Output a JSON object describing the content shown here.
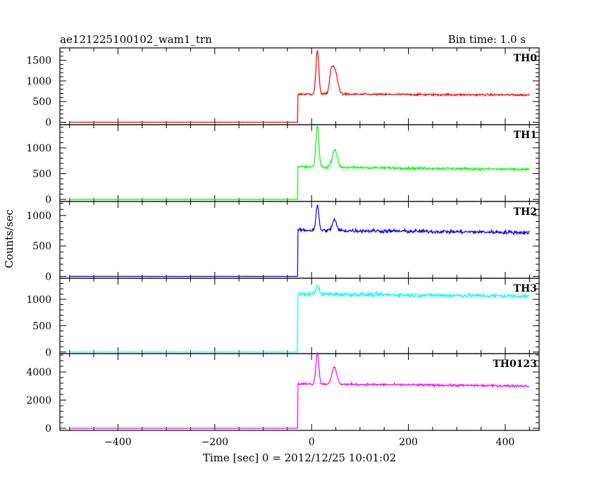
{
  "chart_data": {
    "type": "line",
    "title_left": "ae121225100102_wam1_trn",
    "title_right": "Bin time: 1.0 s",
    "xlabel": "Time [sec] 0 = 2012/12/25 10:01:02",
    "ylabel": "Counts/sec",
    "xlim": [
      -520,
      470
    ],
    "x_ticks": [
      -400,
      -200,
      0,
      200,
      400
    ],
    "grid": false,
    "panels": [
      {
        "name": "TH0",
        "color": "#ff0000",
        "ylim": [
          -60,
          1800
        ],
        "y_ticks": [
          0,
          500,
          1000,
          1500
        ],
        "y_tick_labels": [
          "0",
          "500",
          "1000",
          "1500"
        ],
        "pre_level": 0,
        "post_level": 680,
        "noise": 25,
        "features": [
          {
            "x": 12,
            "height": 1050,
            "width": 3
          },
          {
            "x": 47,
            "height": 620,
            "width": 6
          },
          {
            "x": 40,
            "height": 300,
            "width": 3
          }
        ],
        "end_level": 660
      },
      {
        "name": "TH1",
        "color": "#00ff00",
        "ylim": [
          -40,
          1450
        ],
        "y_ticks": [
          0,
          500,
          1000
        ],
        "y_tick_labels": [
          "0",
          "500",
          "1000"
        ],
        "pre_level": 0,
        "post_level": 630,
        "noise": 25,
        "features": [
          {
            "x": 12,
            "height": 800,
            "width": 3
          },
          {
            "x": 48,
            "height": 350,
            "width": 5
          }
        ],
        "end_level": 580
      },
      {
        "name": "TH2",
        "color": "#0000ff",
        "ylim": [
          -30,
          1230
        ],
        "y_ticks": [
          0,
          500,
          1000
        ],
        "y_tick_labels": [
          "0",
          "500",
          "1000"
        ],
        "pre_level": 0,
        "post_level": 760,
        "noise": 30,
        "features": [
          {
            "x": 12,
            "height": 400,
            "width": 3
          },
          {
            "x": 47,
            "height": 180,
            "width": 4
          }
        ],
        "end_level": 720
      },
      {
        "name": "TH3",
        "color": "#00ffff",
        "ylim": [
          -30,
          1400
        ],
        "y_ticks": [
          0,
          500,
          1000
        ],
        "y_tick_labels": [
          "0",
          "500",
          "1000"
        ],
        "pre_level": 0,
        "post_level": 1100,
        "noise": 40,
        "features": [
          {
            "x": 12,
            "height": 180,
            "width": 3
          }
        ],
        "end_level": 1060
      },
      {
        "name": "TH0123",
        "color": "#ff00ff",
        "ylim": [
          -150,
          5300
        ],
        "y_ticks": [
          0,
          2000,
          4000
        ],
        "y_tick_labels": [
          "0",
          "2000",
          "4000"
        ],
        "pre_level": 0,
        "post_level": 3150,
        "noise": 80,
        "features": [
          {
            "x": 12,
            "height": 2250,
            "width": 3
          },
          {
            "x": 47,
            "height": 1200,
            "width": 5
          }
        ],
        "end_level": 3000
      }
    ],
    "rise_x": -28
  }
}
